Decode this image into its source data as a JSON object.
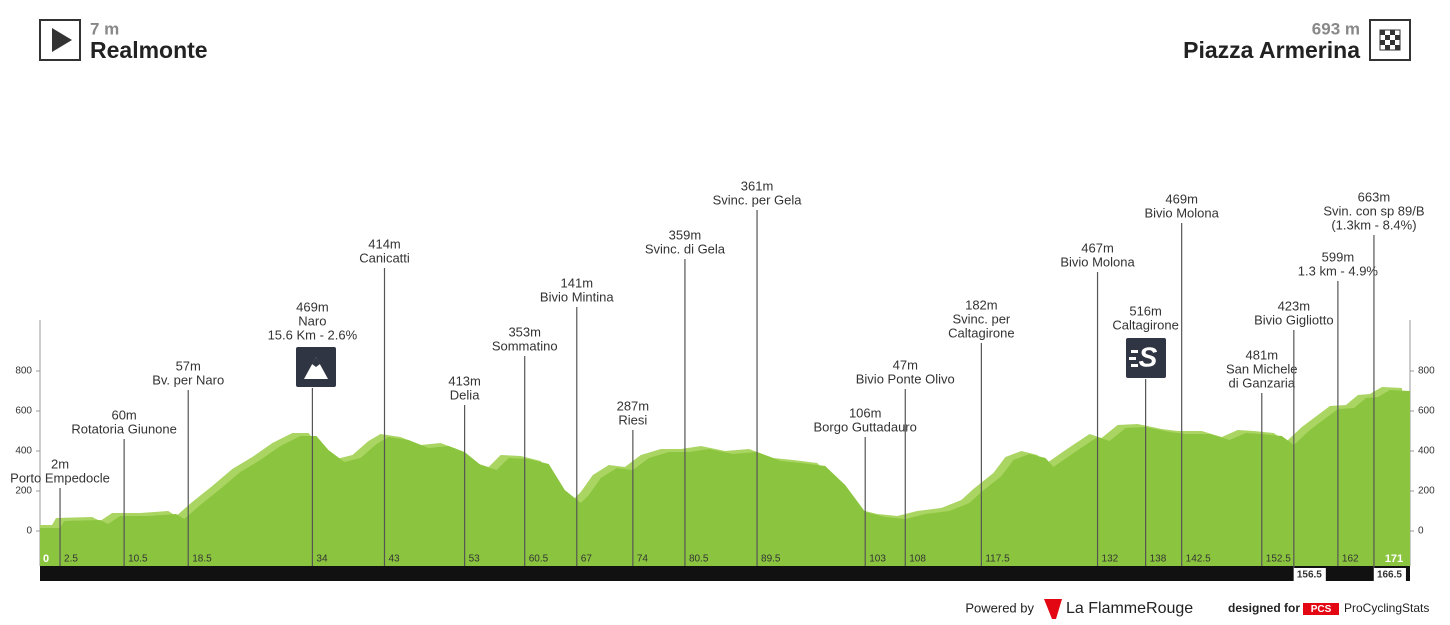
{
  "header": {
    "start": {
      "elevation": "7 m",
      "name": "Realmonte"
    },
    "finish": {
      "elevation": "693 m",
      "name": "Piazza Armerina"
    }
  },
  "chart_data": {
    "type": "area",
    "color": "#8bc53f",
    "x": [
      0,
      2.5,
      3,
      7.5,
      8.5,
      10,
      13.5,
      17,
      18,
      20,
      22.5,
      25,
      27.5,
      30,
      32.5,
      34.5,
      36,
      38,
      40,
      42,
      43.5,
      46,
      48.5,
      51,
      53,
      55,
      57,
      58.5,
      61,
      63.5,
      65.5,
      67.5,
      68.5,
      70,
      72,
      74,
      76,
      78.5,
      81,
      83.5,
      86.5,
      89.5,
      92.5,
      95,
      98,
      100.5,
      103,
      105.5,
      108,
      110.5,
      113.5,
      116,
      117.5,
      120,
      121.5,
      123.5,
      125.5,
      126.5,
      129,
      132,
      133.5,
      135.5,
      138,
      141,
      143,
      146,
      148.5,
      150.5,
      152.5,
      155,
      156.5,
      158.5,
      160.5,
      162,
      164,
      165.5,
      167,
      168.5,
      171
    ],
    "values": [
      15,
      15,
      50,
      55,
      35,
      75,
      75,
      85,
      60,
      130,
      210,
      295,
      355,
      425,
      475,
      475,
      405,
      345,
      365,
      435,
      470,
      455,
      415,
      425,
      395,
      330,
      305,
      365,
      360,
      335,
      205,
      140,
      180,
      265,
      315,
      305,
      365,
      395,
      395,
      410,
      385,
      395,
      350,
      340,
      325,
      230,
      95,
      70,
      60,
      85,
      100,
      140,
      195,
      275,
      355,
      385,
      365,
      320,
      390,
      470,
      450,
      515,
      520,
      495,
      485,
      485,
      455,
      490,
      485,
      475,
      430,
      505,
      565,
      610,
      615,
      665,
      670,
      705,
      700
    ],
    "xlim": [
      0,
      171
    ],
    "ylim": [
      -175,
      1055
    ],
    "yticks": [
      0,
      200,
      400,
      600,
      800
    ],
    "xticks": [
      0,
      2.5,
      10.5,
      18.5,
      34,
      43,
      53,
      60.5,
      67,
      74,
      80.5,
      89.5,
      103,
      108,
      117.5,
      132,
      138,
      142.5,
      152.5,
      156.5,
      162,
      166.5,
      171
    ],
    "waypoints": [
      [
        "2m",
        "Porto Empedocle"
      ],
      [
        "60m",
        "Rotatoria Giunone"
      ],
      [
        "57m",
        "Bv. per Naro"
      ],
      [
        "469m",
        "Naro",
        "15.6 Km - 2.6%"
      ],
      [
        "414m",
        "Canicatti"
      ],
      [
        "413m",
        "Delia"
      ],
      [
        "353m",
        "Sommatino"
      ],
      [
        "141m",
        "Bivio Mintina"
      ],
      [
        "287m",
        "Riesi"
      ],
      [
        "359m",
        "Svinc. di Gela"
      ],
      [
        "361m",
        "Svinc. per Gela"
      ],
      [
        "106m",
        "Borgo Guttadauro"
      ],
      [
        "47m",
        "Bivio Ponte Olivo"
      ],
      [
        "182m",
        "Svinc. per",
        "Caltagirone"
      ],
      [
        "467m",
        "Bivio Molona"
      ],
      [
        "516m",
        "Caltagirone"
      ],
      [
        "469m",
        "Bivio Molona"
      ],
      [
        "481m",
        "San Michele",
        "di Ganzaria"
      ],
      [
        "423m",
        "Bivio Gigliotto"
      ],
      [
        "599m",
        "1.3 km - 4.9%"
      ],
      [
        "663m",
        "Svin. con sp 89/B",
        "(1.3km - 8.4%)"
      ]
    ]
  },
  "footer": {
    "powered_by": "Powered by",
    "brand": "La FlammeRouge",
    "designed_for": "designed for",
    "pcs_logo": "PCS",
    "pcs_name": "ProCyclingStats"
  }
}
